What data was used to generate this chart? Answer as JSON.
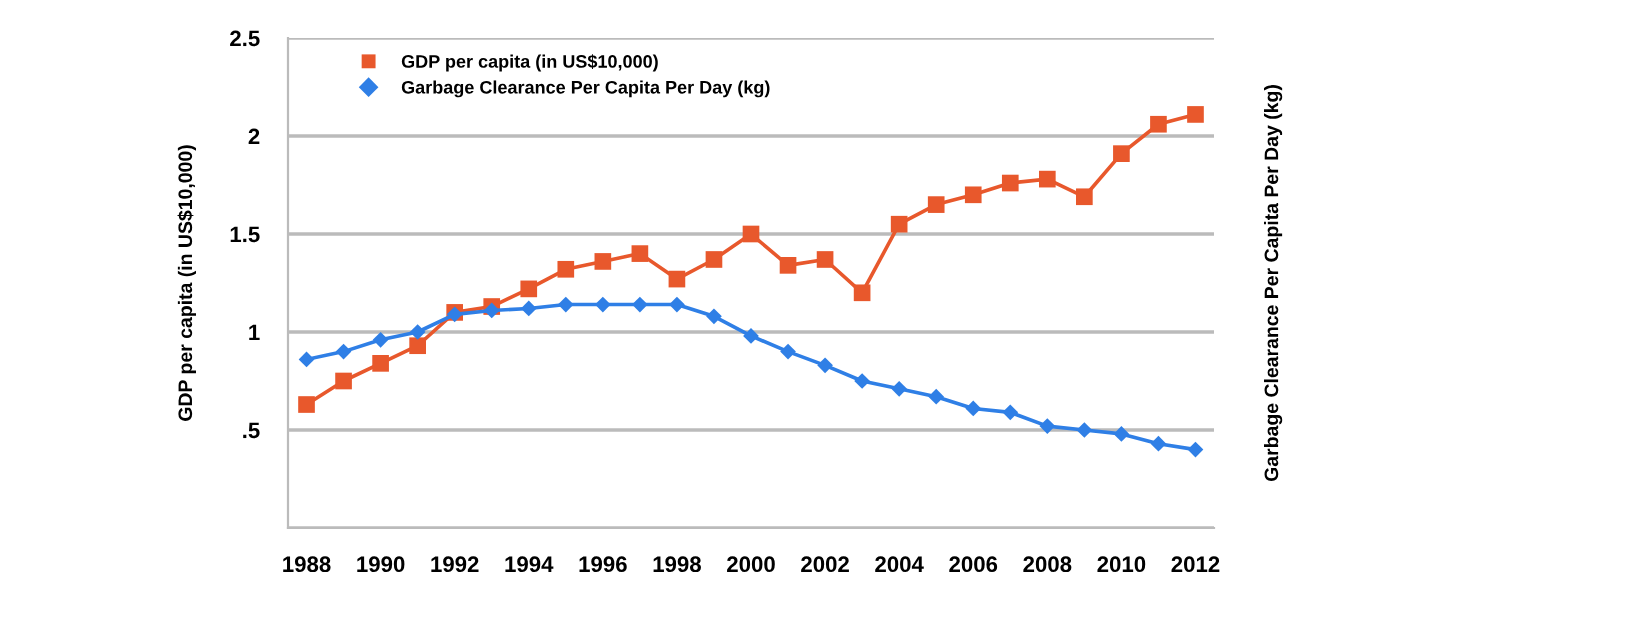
{
  "chart_data": {
    "type": "line",
    "ylabel": "GDP per capita (in US$10,000)",
    "y2label": "Garbage Clearance Per Capita Per Day (kg)",
    "x": [
      1988,
      1989,
      1990,
      1991,
      1992,
      1993,
      1994,
      1995,
      1996,
      1997,
      1998,
      1999,
      2000,
      2001,
      2002,
      2003,
      2004,
      2005,
      2006,
      2007,
      2008,
      2009,
      2010,
      2011,
      2012
    ],
    "series": [
      {
        "name": "GDP per capita (in US$10,000)",
        "color": "#e8582c",
        "marker": "square",
        "values": [
          0.63,
          0.75,
          0.84,
          0.93,
          1.1,
          1.13,
          1.22,
          1.32,
          1.36,
          1.4,
          1.27,
          1.37,
          1.5,
          1.34,
          1.37,
          1.2,
          1.55,
          1.65,
          1.7,
          1.76,
          1.78,
          1.69,
          1.91,
          2.06,
          2.11
        ]
      },
      {
        "name": "Garbage Clearance Per Capita Per Day (kg)",
        "color": "#2f7fe6",
        "marker": "diamond",
        "values": [
          0.86,
          0.9,
          0.96,
          1.0,
          1.09,
          1.11,
          1.12,
          1.14,
          1.14,
          1.14,
          1.14,
          1.08,
          0.98,
          0.9,
          0.83,
          0.75,
          0.71,
          0.67,
          0.61,
          0.59,
          0.52,
          0.5,
          0.48,
          0.43,
          0.4
        ]
      }
    ],
    "xlim": [
      1987.5,
      2012.5
    ],
    "xticks": [
      1988,
      1990,
      1992,
      1994,
      1996,
      1998,
      2000,
      2002,
      2004,
      2006,
      2008,
      2010,
      2012
    ],
    "ylim": [
      0,
      2.5
    ],
    "yticks": [
      {
        "value": 0,
        "label": null
      },
      {
        "value": 0.5,
        "label": ".5"
      },
      1,
      1.5,
      2,
      2.5
    ],
    "grid": "y",
    "legend": "top left",
    "line_style": "solid"
  }
}
